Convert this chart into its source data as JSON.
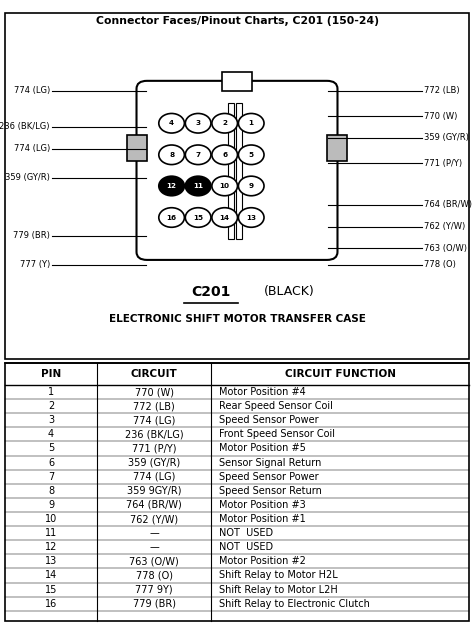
{
  "title": "Connector Faces/Pinout Charts, C201 (150-24)",
  "connector_label": "C201",
  "connector_color": "(BLACK)",
  "connector_subtitle": "ELECTRONIC SHIFT MOTOR TRANSFER CASE",
  "background_color": "#ffffff",
  "left_label_data": [
    {
      "y": 7.5,
      "text": "774 (LG)"
    },
    {
      "y": 6.5,
      "text": "236 (BK/LG)"
    },
    {
      "y": 5.9,
      "text": "774 (LG)"
    },
    {
      "y": 5.1,
      "text": "359 (GY/R)"
    },
    {
      "y": 3.5,
      "text": "779 (BR)"
    },
    {
      "y": 2.7,
      "text": "777 (Y)"
    }
  ],
  "right_label_data": [
    {
      "y": 7.5,
      "text": "772 (LB)"
    },
    {
      "y": 6.8,
      "text": "770 (W)"
    },
    {
      "y": 6.2,
      "text": "359 (GY/R)"
    },
    {
      "y": 5.5,
      "text": "771 (P/Y)"
    },
    {
      "y": 4.35,
      "text": "764 (BR/W)"
    },
    {
      "y": 3.75,
      "text": "762 (Y/W)"
    },
    {
      "y": 3.15,
      "text": "763 (O/W)"
    },
    {
      "y": 2.7,
      "text": "778 (O)"
    }
  ],
  "pins": [
    {
      "num": 1,
      "row": 0,
      "col": 3,
      "black": false
    },
    {
      "num": 2,
      "row": 0,
      "col": 2,
      "black": false
    },
    {
      "num": 3,
      "row": 0,
      "col": 1,
      "black": false
    },
    {
      "num": 4,
      "row": 0,
      "col": 0,
      "black": false
    },
    {
      "num": 5,
      "row": 1,
      "col": 3,
      "black": false
    },
    {
      "num": 6,
      "row": 1,
      "col": 2,
      "black": false
    },
    {
      "num": 7,
      "row": 1,
      "col": 1,
      "black": false
    },
    {
      "num": 8,
      "row": 1,
      "col": 0,
      "black": false
    },
    {
      "num": 9,
      "row": 2,
      "col": 3,
      "black": false
    },
    {
      "num": 10,
      "row": 2,
      "col": 2,
      "black": false
    },
    {
      "num": 11,
      "row": 2,
      "col": 1,
      "black": true
    },
    {
      "num": 12,
      "row": 2,
      "col": 0,
      "black": true
    },
    {
      "num": 13,
      "row": 3,
      "col": 3,
      "black": false
    },
    {
      "num": 14,
      "row": 3,
      "col": 2,
      "black": false
    },
    {
      "num": 15,
      "row": 3,
      "col": 1,
      "black": false
    },
    {
      "num": 16,
      "row": 3,
      "col": 0,
      "black": false
    }
  ],
  "table_headers": [
    "PIN",
    "CIRCUIT",
    "CIRCUIT FUNCTION"
  ],
  "table_rows": [
    [
      "1",
      "770 (W)",
      "Motor Position #4"
    ],
    [
      "2",
      "772 (LB)",
      "Rear Speed Sensor Coil"
    ],
    [
      "3",
      "774 (LG)",
      "Speed Sensor Power"
    ],
    [
      "4",
      "236 (BK/LG)",
      "Front Speed Sensor Coil"
    ],
    [
      "5",
      "771 (P/Y)",
      "Motor Position #5"
    ],
    [
      "6",
      "359 (GY/R)",
      "Sensor Signal Return"
    ],
    [
      "7",
      "774 (LG)",
      "Speed Sensor Power"
    ],
    [
      "8",
      "359 9GY/R)",
      "Speed Sensor Return"
    ],
    [
      "9",
      "764 (BR/W)",
      "Motor Position #3"
    ],
    [
      "10",
      "762 (Y/W)",
      "Motor Position #1"
    ],
    [
      "11",
      "—",
      "NOT  USED"
    ],
    [
      "12",
      "—",
      "NOT  USED"
    ],
    [
      "13",
      "763 (O/W)",
      "Motor Position #2"
    ],
    [
      "14",
      "778 (O)",
      "Shift Relay to Motor H2L"
    ],
    [
      "15",
      "777 9Y)",
      "Shift Relay to Motor L2H"
    ],
    [
      "16",
      "779 (BR)",
      "Shift Relay to Electronic Clutch"
    ]
  ]
}
